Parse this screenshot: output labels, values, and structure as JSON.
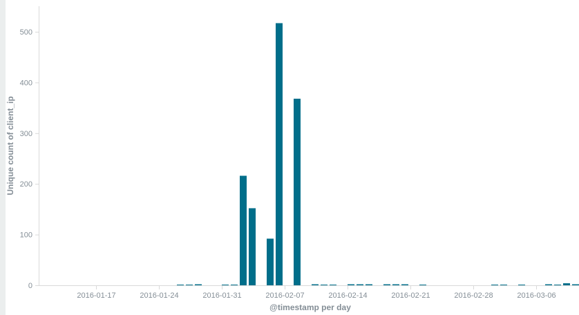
{
  "chart_data": {
    "type": "bar",
    "title": "",
    "xlabel": "@timestamp per day",
    "ylabel": "Unique count of client_ip",
    "ylim": [
      0,
      550
    ],
    "xlim": [
      "2016-01-13",
      "2016-03-10"
    ],
    "grid": false,
    "bar_color": "#006e8a",
    "axis_color": "#d9d9d9",
    "yticks": [
      0,
      100,
      200,
      300,
      400,
      500
    ],
    "xticks": [
      "2016-01-17",
      "2016-01-24",
      "2016-01-31",
      "2016-02-07",
      "2016-02-14",
      "2016-02-21",
      "2016-02-28",
      "2016-03-06"
    ],
    "series": [
      {
        "x": [
          "2016-01-26",
          "2016-01-27",
          "2016-01-28",
          "2016-01-31",
          "2016-02-01",
          "2016-02-02",
          "2016-02-03",
          "2016-02-05",
          "2016-02-06",
          "2016-02-08",
          "2016-02-10",
          "2016-02-11",
          "2016-02-12",
          "2016-02-14",
          "2016-02-15",
          "2016-02-16",
          "2016-02-18",
          "2016-02-19",
          "2016-02-20",
          "2016-02-22",
          "2016-03-01",
          "2016-03-02",
          "2016-03-04",
          "2016-03-07",
          "2016-03-08",
          "2016-03-09",
          "2016-03-10"
        ],
        "values": [
          1,
          1,
          2,
          1,
          1,
          216,
          152,
          92,
          517,
          368,
          2,
          1,
          1,
          2,
          2,
          2,
          2,
          2,
          2,
          1,
          1,
          1,
          1,
          2,
          1,
          4,
          2
        ]
      }
    ]
  }
}
